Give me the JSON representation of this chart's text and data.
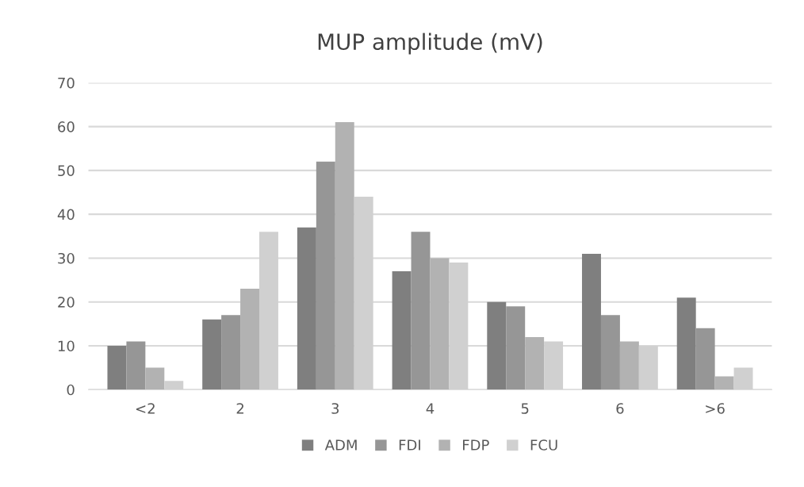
{
  "chart_data": {
    "type": "bar",
    "title": "MUP amplitude (mV)",
    "categories": [
      "<2",
      "2",
      "3",
      "4",
      "5",
      "6",
      ">6"
    ],
    "series": [
      {
        "name": "ADM",
        "color": "#7f7f7f",
        "values": [
          10,
          16,
          37,
          27,
          20,
          31,
          21
        ]
      },
      {
        "name": "FDI",
        "color": "#969696",
        "values": [
          11,
          17,
          52,
          36,
          19,
          17,
          14
        ]
      },
      {
        "name": "FDP",
        "color": "#b2b2b2",
        "values": [
          5,
          23,
          61,
          30,
          12,
          11,
          3
        ]
      },
      {
        "name": "FCU",
        "color": "#d0d0d0",
        "values": [
          2,
          36,
          44,
          29,
          11,
          10,
          5
        ]
      }
    ],
    "ylim": [
      0,
      70
    ],
    "yticks": [
      0,
      10,
      20,
      30,
      40,
      50,
      60,
      70
    ],
    "grid": "y",
    "legend": "bottom"
  }
}
